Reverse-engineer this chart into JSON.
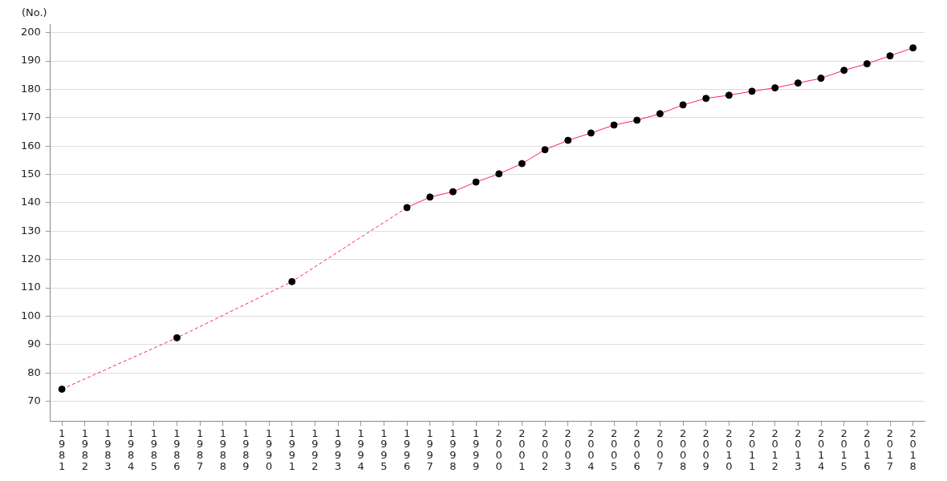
{
  "chart_data": {
    "type": "line",
    "ylabel": "(No.)",
    "categories": [
      "1981",
      "1982",
      "1983",
      "1984",
      "1985",
      "1986",
      "1987",
      "1988",
      "1989",
      "1990",
      "1991",
      "1992",
      "1993",
      "1994",
      "1995",
      "1996",
      "1997",
      "1998",
      "1999",
      "2000",
      "2001",
      "2002",
      "2003",
      "2004",
      "2005",
      "2006",
      "2007",
      "2008",
      "2009",
      "2010",
      "2011",
      "2012",
      "2013",
      "2014",
      "2015",
      "2016",
      "2017",
      "2018"
    ],
    "series": [
      {
        "color": "#ff2255",
        "values": [
          74.3,
          null,
          null,
          null,
          null,
          92.4,
          null,
          null,
          null,
          null,
          112.2,
          null,
          null,
          null,
          null,
          138.3,
          142.0,
          143.9,
          147.3,
          150.2,
          153.8,
          158.7,
          162.0,
          164.6,
          167.4,
          169.1,
          171.4,
          174.5,
          176.8,
          177.9,
          179.3,
          180.5,
          182.2,
          183.9,
          186.7,
          189.0,
          191.8,
          194.6
        ]
      }
    ],
    "ylim": [
      63,
      203
    ],
    "yticks": [
      70,
      80,
      90,
      100,
      110,
      120,
      130,
      140,
      150,
      160,
      170,
      180,
      190,
      200
    ],
    "grid": "y",
    "legend": false,
    "marker": "circle",
    "line_style": "solid"
  }
}
